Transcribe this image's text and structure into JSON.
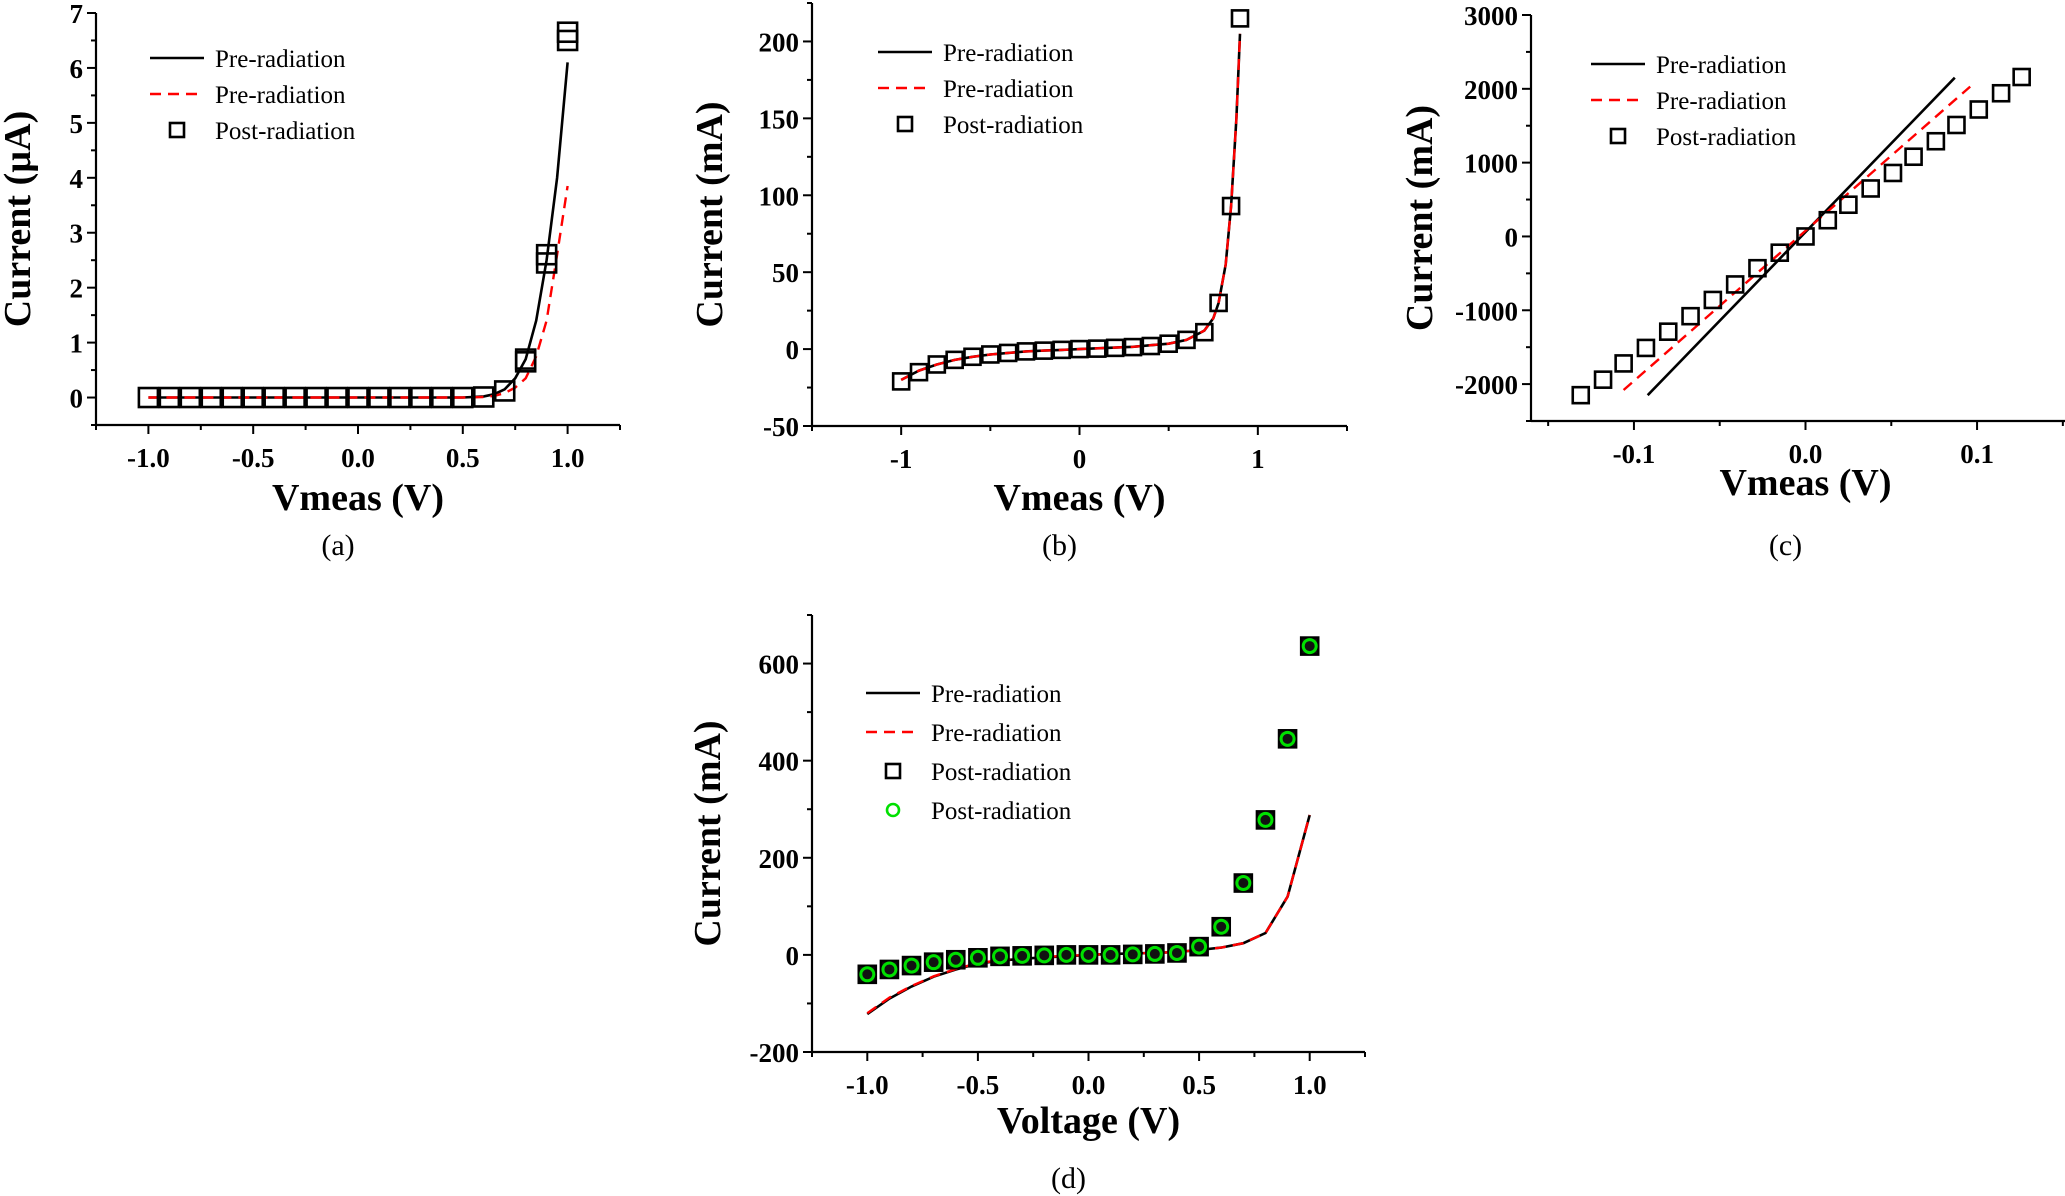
{
  "figure": {
    "panels": [
      "(a)",
      "(b)",
      "(c)",
      "(d)"
    ]
  },
  "chart_data": [
    {
      "id": "a",
      "type": "line",
      "panel_label": "(a)",
      "xlabel": "Vmeas (V)",
      "ylabel": "Current (µA)",
      "xlim": [
        -1.25,
        1.25
      ],
      "ylim": [
        -0.5,
        7
      ],
      "xticks": [
        -1.0,
        -0.5,
        0.0,
        0.5,
        1.0
      ],
      "xtick_labels": [
        "-1.0",
        "-0.5",
        "0.0",
        "0.5",
        "1.0"
      ],
      "xminor": [
        -1.25,
        -0.75,
        -0.25,
        0.25,
        0.75,
        1.25
      ],
      "yticks": [
        0,
        1,
        2,
        3,
        4,
        5,
        6,
        7
      ],
      "ytick_labels": [
        "0",
        "1",
        "2",
        "3",
        "4",
        "5",
        "6",
        "7"
      ],
      "yminor": [
        -0.5,
        0.5,
        1.5,
        2.5,
        3.5,
        4.5,
        5.5,
        6.5
      ],
      "legend": {
        "position": "top-left",
        "entries": [
          "Pre-radiation",
          "Pre-radiation",
          "Post-radiation"
        ]
      },
      "series": [
        {
          "name": "Pre-radiation",
          "style": "solid",
          "color": "#000000",
          "x": [
            -1.0,
            -0.8,
            -0.6,
            -0.4,
            -0.2,
            0.0,
            0.2,
            0.4,
            0.5,
            0.6,
            0.65,
            0.7,
            0.75,
            0.8,
            0.85,
            0.9,
            0.95,
            1.0
          ],
          "y": [
            0,
            0,
            0,
            0,
            0,
            0,
            0,
            0,
            0,
            0.02,
            0.06,
            0.15,
            0.35,
            0.7,
            1.4,
            2.5,
            4.0,
            6.1
          ]
        },
        {
          "name": "Pre-radiation",
          "style": "dashed",
          "color": "#ff0000",
          "x": [
            -1.0,
            -0.8,
            -0.6,
            -0.4,
            -0.2,
            0.0,
            0.2,
            0.4,
            0.5,
            0.6,
            0.65,
            0.7,
            0.75,
            0.8,
            0.85,
            0.9,
            0.95,
            1.0
          ],
          "y": [
            0,
            0,
            0,
            0,
            0,
            0,
            0,
            0,
            0,
            0.01,
            0.03,
            0.08,
            0.18,
            0.35,
            0.75,
            1.4,
            2.6,
            3.85
          ]
        },
        {
          "name": "Post-radiation",
          "style": "square",
          "color": "#000000",
          "x": [
            -1.0,
            -0.9,
            -0.8,
            -0.7,
            -0.6,
            -0.5,
            -0.4,
            -0.3,
            -0.2,
            -0.1,
            0.0,
            0.1,
            0.2,
            0.3,
            0.4,
            0.5,
            0.6,
            0.7,
            0.8,
            0.8,
            0.9,
            0.9,
            1.0,
            1.0
          ],
          "y": [
            0,
            0,
            0,
            0,
            0,
            0,
            0,
            0,
            0,
            0,
            0,
            0,
            0,
            0,
            0,
            0,
            0.01,
            0.12,
            0.65,
            0.7,
            2.45,
            2.6,
            6.5,
            6.65
          ]
        }
      ]
    },
    {
      "id": "b",
      "type": "line",
      "panel_label": "(b)",
      "xlabel": "Vmeas (V)",
      "ylabel": "Current (mA)",
      "xlim": [
        -1.5,
        1.5
      ],
      "ylim": [
        -50,
        225
      ],
      "xticks": [
        -1,
        0,
        1
      ],
      "xtick_labels": [
        "-1",
        "0",
        "1"
      ],
      "xminor": [
        -1.5,
        -0.5,
        0.5,
        1.5
      ],
      "yticks": [
        -50,
        0,
        50,
        100,
        150,
        200
      ],
      "ytick_labels": [
        "-50",
        "0",
        "50",
        "100",
        "150",
        "200"
      ],
      "yminor": [
        -25,
        25,
        75,
        125,
        175,
        225
      ],
      "legend": {
        "position": "top-left",
        "entries": [
          "Pre-radiation",
          "Pre-radiation",
          "Post-radiation"
        ]
      },
      "series": [
        {
          "name": "Pre-radiation",
          "style": "solid",
          "color": "#000000",
          "x": [
            -1.0,
            -0.9,
            -0.8,
            -0.7,
            -0.6,
            -0.5,
            -0.4,
            -0.3,
            -0.2,
            -0.1,
            0.0,
            0.1,
            0.2,
            0.3,
            0.4,
            0.5,
            0.6,
            0.7,
            0.75,
            0.78,
            0.82,
            0.85,
            0.88,
            0.9
          ],
          "y": [
            -20,
            -14,
            -10,
            -7,
            -5,
            -3.5,
            -2.5,
            -1.5,
            -1,
            -0.5,
            0,
            0.5,
            1,
            1.5,
            2.5,
            3.5,
            6,
            12,
            20,
            30,
            55,
            93,
            150,
            205
          ]
        },
        {
          "name": "Pre-radiation",
          "style": "dashed",
          "color": "#ff0000",
          "x": [
            -1.0,
            -0.9,
            -0.8,
            -0.7,
            -0.6,
            -0.5,
            -0.4,
            -0.3,
            -0.2,
            -0.1,
            0.0,
            0.1,
            0.2,
            0.3,
            0.4,
            0.5,
            0.6,
            0.7,
            0.75,
            0.78,
            0.82,
            0.85,
            0.88,
            0.9
          ],
          "y": [
            -20,
            -14,
            -10,
            -7,
            -5,
            -3.5,
            -2.5,
            -1.5,
            -1,
            -0.5,
            0,
            0.5,
            1,
            1.5,
            2.5,
            3.5,
            6,
            12,
            20,
            30,
            55,
            93,
            150,
            205
          ]
        },
        {
          "name": "Post-radiation",
          "style": "square",
          "color": "#000000",
          "x": [
            -1.0,
            -0.9,
            -0.8,
            -0.7,
            -0.6,
            -0.5,
            -0.4,
            -0.3,
            -0.2,
            -0.1,
            0.0,
            0.1,
            0.2,
            0.3,
            0.4,
            0.5,
            0.6,
            0.7,
            0.78,
            0.85,
            0.9
          ],
          "y": [
            -21,
            -15,
            -10,
            -7,
            -5,
            -3.5,
            -2.5,
            -1.5,
            -1,
            -0.5,
            0,
            0.3,
            0.8,
            1.3,
            2,
            3.5,
            6,
            11,
            30,
            93,
            215
          ]
        }
      ]
    },
    {
      "id": "c",
      "type": "line",
      "panel_label": "(c)",
      "xlabel": "Vmeas (V)",
      "ylabel": "Current (mA)",
      "xlim": [
        -0.16,
        0.16
      ],
      "ylim": [
        -2500,
        3000
      ],
      "xticks": [
        -0.1,
        0.0,
        0.1
      ],
      "xtick_labels": [
        "-0.1",
        "0.0",
        "0.1"
      ],
      "xminor": [
        -0.15,
        -0.05,
        0.05,
        0.15
      ],
      "yticks": [
        -2000,
        -1000,
        0,
        1000,
        2000,
        3000
      ],
      "ytick_labels": [
        "-2000",
        "-1000",
        "0",
        "1000",
        "2000",
        "3000"
      ],
      "yminor": [
        -2500,
        -1500,
        -500,
        500,
        1500,
        2500
      ],
      "legend": {
        "position": "top-left",
        "entries": [
          "Pre-radiation",
          "Pre-radiation",
          "Post-radiation"
        ]
      },
      "series": [
        {
          "name": "Pre-radiation",
          "style": "solid",
          "color": "#000000",
          "x": [
            -0.092,
            0.087
          ],
          "y": [
            -2150,
            2150
          ]
        },
        {
          "name": "Pre-radiation",
          "style": "dashed",
          "color": "#ff0000",
          "x": [
            -0.106,
            0.096
          ],
          "y": [
            -2080,
            2030
          ]
        },
        {
          "name": "Post-radiation",
          "style": "square",
          "color": "#000000",
          "x": [
            -0.131,
            -0.118,
            -0.106,
            -0.093,
            -0.08,
            -0.067,
            -0.054,
            -0.041,
            -0.028,
            -0.015,
            0.0,
            0.013,
            0.025,
            0.038,
            0.051,
            0.063,
            0.076,
            0.088,
            0.101,
            0.114,
            0.126
          ],
          "y": [
            -2150,
            -1940,
            -1720,
            -1510,
            -1290,
            -1080,
            -860,
            -650,
            -430,
            -220,
            0,
            220,
            430,
            650,
            860,
            1080,
            1290,
            1510,
            1720,
            1940,
            2160
          ]
        }
      ]
    },
    {
      "id": "d",
      "type": "line",
      "panel_label": "(d)",
      "xlabel": "Voltage (V)",
      "ylabel": "Current (mA)",
      "xlim": [
        -1.25,
        1.25
      ],
      "ylim": [
        -200,
        700
      ],
      "xticks": [
        -1.0,
        -0.5,
        0.0,
        0.5,
        1.0
      ],
      "xtick_labels": [
        "-1.0",
        "-0.5",
        "0.0",
        "0.5",
        "1.0"
      ],
      "xminor": [
        -1.25,
        -0.75,
        -0.25,
        0.25,
        0.75,
        1.25
      ],
      "yticks": [
        -200,
        0,
        200,
        400,
        600
      ],
      "ytick_labels": [
        "-200",
        "0",
        "200",
        "400",
        "600"
      ],
      "yminor": [
        -100,
        100,
        300,
        500,
        700
      ],
      "legend": {
        "position": "top-left",
        "entries": [
          "Pre-radiation",
          "Pre-radiation",
          "Post-radiation",
          "Post-radiation"
        ]
      },
      "series": [
        {
          "name": "Pre-radiation",
          "style": "solid",
          "color": "#000000",
          "x": [
            -1.0,
            -0.9,
            -0.8,
            -0.7,
            -0.6,
            -0.5,
            -0.4,
            -0.3,
            -0.2,
            -0.1,
            0.0,
            0.1,
            0.2,
            0.3,
            0.4,
            0.5,
            0.6,
            0.7,
            0.8,
            0.9,
            1.0
          ],
          "y": [
            -122,
            -90,
            -65,
            -45,
            -30,
            -18,
            -12,
            -8,
            -5,
            -3,
            0,
            2,
            3,
            4,
            6,
            10,
            15,
            24,
            45,
            120,
            288
          ]
        },
        {
          "name": "Pre-radiation",
          "style": "dashed",
          "color": "#ff0000",
          "x": [
            -1.0,
            -0.9,
            -0.8,
            -0.7,
            -0.6,
            -0.5,
            -0.4,
            -0.3,
            -0.2,
            -0.1,
            0.0,
            0.1,
            0.2,
            0.3,
            0.4,
            0.5,
            0.6,
            0.7,
            0.8,
            0.9,
            1.0
          ],
          "y": [
            -120,
            -88,
            -64,
            -44,
            -29,
            -17,
            -11,
            -7,
            -4,
            -2,
            0,
            2,
            3,
            4,
            6,
            10,
            15,
            24,
            45,
            120,
            288
          ]
        },
        {
          "name": "Post-radiation",
          "style": "square-filled",
          "color": "#000000",
          "x": [
            -1.0,
            -0.9,
            -0.8,
            -0.7,
            -0.6,
            -0.5,
            -0.4,
            -0.3,
            -0.2,
            -0.1,
            0.0,
            0.1,
            0.2,
            0.3,
            0.4,
            0.5,
            0.6,
            0.7,
            0.8,
            0.9,
            1.0
          ],
          "y": [
            -40,
            -30,
            -22,
            -15,
            -10,
            -6,
            -3,
            -2,
            -1,
            0,
            0,
            0,
            1,
            2,
            4,
            17,
            58,
            148,
            278,
            445,
            636
          ]
        },
        {
          "name": "Post-radiation",
          "style": "circle",
          "color": "#00e000",
          "x": [
            -1.0,
            -0.9,
            -0.8,
            -0.7,
            -0.6,
            -0.5,
            -0.4,
            -0.3,
            -0.2,
            -0.1,
            0.0,
            0.1,
            0.2,
            0.3,
            0.4,
            0.5,
            0.6,
            0.7,
            0.8,
            0.9,
            1.0
          ],
          "y": [
            -40,
            -30,
            -22,
            -15,
            -10,
            -6,
            -3,
            -2,
            -1,
            0,
            0,
            0,
            1,
            2,
            4,
            17,
            58,
            148,
            278,
            445,
            636
          ]
        }
      ]
    }
  ]
}
